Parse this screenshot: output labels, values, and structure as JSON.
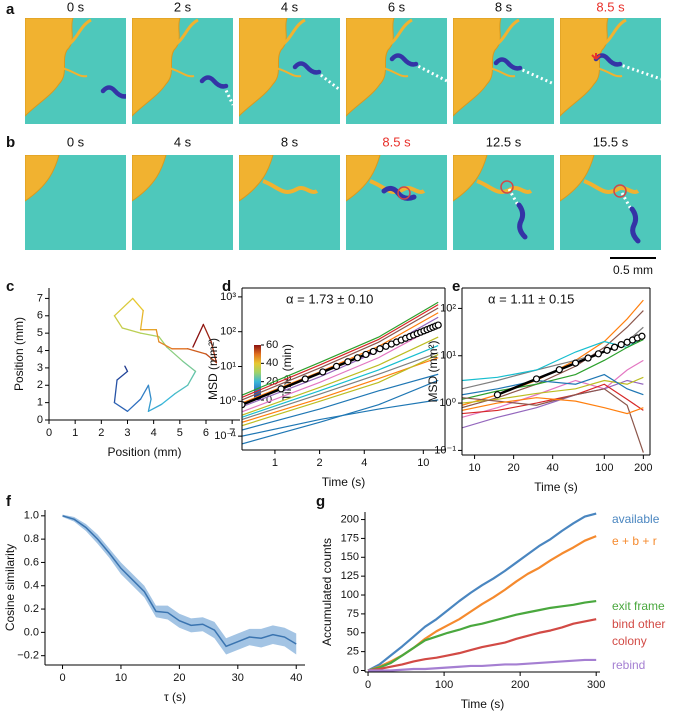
{
  "panel_labels": [
    "a",
    "b",
    "c",
    "d",
    "e",
    "f",
    "g"
  ],
  "image_rows": [
    {
      "frames": [
        {
          "time": "0 s"
        },
        {
          "time": "2 s"
        },
        {
          "time": "4 s"
        },
        {
          "time": "6 s"
        },
        {
          "time": "8 s"
        },
        {
          "time": "8.5 s",
          "color": "#e8302a"
        }
      ]
    },
    {
      "frames": [
        {
          "time": "0 s"
        },
        {
          "time": "4 s"
        },
        {
          "time": "8 s"
        },
        {
          "time": "8.5 s",
          "color": "#e8302a"
        },
        {
          "time": "12.5 s"
        },
        {
          "time": "15.5 s"
        }
      ]
    }
  ],
  "scale_bar": "0.5 mm",
  "chart_data": [
    {
      "type": "trajectory",
      "xlabel": "Position (mm)",
      "ylabel": "Position (mm)",
      "x": [
        2.9,
        3.0,
        2.6,
        2.5,
        3.0,
        3.5,
        3.8,
        3.9,
        3.8,
        4.3,
        4.8,
        5.3,
        5.6,
        5.1,
        4.5,
        4.2,
        3.5,
        2.8,
        2.5,
        3.2,
        3.6,
        3.5,
        4.1,
        4.2,
        4.7,
        5.3,
        6.0,
        6.4,
        6.2,
        5.9,
        5.5
      ],
      "y": [
        3.1,
        2.8,
        2.3,
        1.0,
        0.5,
        1.2,
        2.0,
        1.2,
        0.5,
        0.9,
        1.5,
        2.0,
        2.8,
        3.4,
        4.2,
        4.8,
        5.0,
        5.3,
        6.0,
        7.0,
        6.3,
        5.2,
        5.2,
        4.5,
        4.1,
        4.1,
        3.8,
        3.3,
        4.5,
        5.5,
        4.2
      ],
      "t": [
        0,
        2,
        4,
        6,
        8,
        10,
        12,
        14,
        16,
        18,
        20,
        22,
        24,
        26,
        28,
        30,
        32,
        34,
        36,
        38,
        40,
        42,
        44,
        46,
        48,
        50,
        52,
        54,
        56,
        58,
        60
      ],
      "xlim": [
        0,
        7.3
      ],
      "ylim": [
        0,
        7.6
      ],
      "xticks": [
        0,
        1,
        2,
        3,
        4,
        5,
        6,
        7
      ],
      "yticks": [
        0,
        1,
        2,
        3,
        4,
        5,
        6,
        7
      ],
      "colorbar": {
        "label": "Time (min)",
        "clim": [
          0,
          60
        ],
        "ticks": [
          0,
          20,
          40,
          60
        ],
        "colormap": [
          "#1a2a80",
          "#2f6fc0",
          "#3ab8d8",
          "#9fd36a",
          "#e8c830",
          "#e07020",
          "#8a1010"
        ]
      }
    },
    {
      "type": "loglog",
      "annotation": "α = 1.73 ± 0.10",
      "xlabel": "Time (s)",
      "ylabel": "MSD (mm²)",
      "log_x": true,
      "log_y": true,
      "xlim": [
        0.6,
        14
      ],
      "ylim": [
        0.04,
        1800
      ],
      "xticks": [
        1,
        2,
        4,
        10
      ],
      "yticks": [
        {
          "value": 0.1,
          "label": "10⁻¹"
        },
        {
          "value": 1,
          "label": "10⁰"
        },
        {
          "value": 10,
          "label": "10¹"
        },
        {
          "value": 100,
          "label": "10²"
        },
        {
          "value": 1000,
          "label": "10³"
        }
      ],
      "x": [
        0.6,
        2,
        5,
        12.6
      ],
      "series": [
        {
          "color": "#2ca02c",
          "values": [
            1.5,
            13,
            70,
            700
          ]
        },
        {
          "color": "#d62728",
          "values": [
            1.3,
            11,
            60,
            600
          ]
        },
        {
          "color": "#8c564b",
          "values": [
            1.1,
            9,
            50,
            480
          ]
        },
        {
          "color": "#ff7f0e",
          "values": [
            0.9,
            7,
            38,
            350
          ]
        },
        {
          "color": "#9467bd",
          "values": [
            0.7,
            5,
            28,
            260
          ]
        },
        {
          "color": "#e377c2",
          "values": [
            0.5,
            3.5,
            18,
            150
          ]
        },
        {
          "color": "#bcbd22",
          "values": [
            0.4,
            2.5,
            11,
            70
          ]
        },
        {
          "color": "#17becf",
          "values": [
            0.35,
            2,
            8,
            40
          ]
        },
        {
          "color": "#7f7f7f",
          "values": [
            0.3,
            1.6,
            6,
            25
          ]
        },
        {
          "color": "#ff7f0e",
          "values": [
            0.25,
            1.2,
            4.5,
            18
          ]
        },
        {
          "color": "#bcbd22",
          "values": [
            0.2,
            1,
            3.5,
            22
          ]
        },
        {
          "color": "#1f77b4",
          "values": [
            0.15,
            0.6,
            2,
            6
          ]
        },
        {
          "color": "#1f77b4",
          "values": [
            0.06,
            0.25,
            0.8,
            4
          ]
        },
        {
          "color": "#1f77b4",
          "values": [
            0.1,
            0.3,
            0.6,
            1.1
          ]
        }
      ],
      "mean": {
        "x": [
          0.6,
          1.1,
          1.6,
          2.1,
          2.6,
          3.1,
          3.6,
          4.1,
          4.6,
          5.1,
          5.6,
          6.1,
          6.6,
          7.1,
          7.6,
          8.1,
          8.6,
          9.1,
          9.6,
          10.1,
          10.6,
          11.1,
          11.6,
          12.1,
          12.6
        ],
        "values": [
          0.8,
          2.28,
          4.37,
          6.99,
          10.1,
          13.7,
          17.8,
          22.2,
          27.1,
          32.4,
          38.1,
          44.2,
          50.7,
          57.5,
          64.7,
          72.2,
          80.1,
          88.3,
          96.9,
          105.8,
          115.0,
          124.5,
          134.4,
          144.7,
          155.1
        ]
      },
      "fit": {
        "x": [
          0.6,
          12.6
        ],
        "values": [
          0.8,
          155.1
        ]
      }
    },
    {
      "type": "loglog",
      "annotation": "α = 1.11 ± 0.15",
      "xlabel": "Time (s)",
      "ylabel": "MSD (mm²)",
      "log_x": true,
      "log_y": true,
      "xlim": [
        8,
        225
      ],
      "ylim": [
        0.08,
        270
      ],
      "xticks": [
        10,
        20,
        40,
        100,
        200
      ],
      "yticks": [
        {
          "value": 0.1,
          "label": "10⁻¹"
        },
        {
          "value": 1,
          "label": "10⁰"
        },
        {
          "value": 10,
          "label": "10¹"
        },
        {
          "value": 100,
          "label": "10²"
        }
      ],
      "x": [
        8,
        15,
        30,
        60,
        100,
        150,
        200
      ],
      "series": [
        {
          "color": "#ff7f0e",
          "values": [
            0.9,
            1.5,
            3,
            8,
            20,
            60,
            150
          ]
        },
        {
          "color": "#8c564b",
          "values": [
            0.8,
            1.3,
            2.5,
            6,
            15,
            40,
            90
          ]
        },
        {
          "color": "#7f7f7f",
          "values": [
            2,
            3,
            5,
            8,
            12,
            20,
            40
          ]
        },
        {
          "color": "#17becf",
          "values": [
            3,
            3.5,
            5,
            12,
            20,
            15,
            25
          ]
        },
        {
          "color": "#2ca02c",
          "values": [
            1.2,
            1.8,
            2.5,
            4,
            8,
            15,
            22
          ]
        },
        {
          "color": "#e377c2",
          "values": [
            0.5,
            0.8,
            1.5,
            3,
            2,
            5,
            8
          ]
        },
        {
          "color": "#9467bd",
          "values": [
            0.3,
            0.5,
            0.8,
            1.5,
            2,
            3,
            2.5
          ]
        },
        {
          "color": "#bcbd22",
          "values": [
            1,
            1.2,
            1.6,
            2,
            3,
            2.5,
            3.5
          ]
        },
        {
          "color": "#1f77b4",
          "values": [
            1.5,
            2,
            3,
            2.5,
            4,
            2,
            1.5
          ]
        },
        {
          "color": "#d62728",
          "values": [
            0.6,
            0.7,
            1,
            1.5,
            2.5,
            1.2,
            0.7
          ]
        },
        {
          "color": "#8c564b",
          "values": [
            1.3,
            1.1,
            0.9,
            1.5,
            2,
            0.9,
            0.09
          ]
        },
        {
          "color": "#ff7f0e",
          "values": [
            0.7,
            1,
            1.3,
            1.1,
            0.8,
            0.6,
            0.8
          ]
        }
      ],
      "mean": {
        "x": [
          15,
          30,
          45,
          60,
          75,
          90,
          105,
          120,
          135,
          150,
          165,
          180,
          195
        ],
        "values": [
          1.5,
          3.24,
          5.08,
          6.99,
          8.95,
          11.0,
          13.0,
          15.1,
          17.2,
          19.3,
          21.5,
          23.7,
          25.8
        ]
      },
      "fit": {
        "x": [
          15,
          195
        ],
        "values": [
          1.5,
          25.8
        ]
      }
    },
    {
      "type": "line_band",
      "xlabel": "τ (s)",
      "ylabel": "Cosine similarity",
      "color": "#3a74b0",
      "band_color": "#a3c4e4",
      "xlim": [
        -3,
        41.5
      ],
      "ylim": [
        -0.28,
        1.05
      ],
      "xticks": [
        0,
        10,
        20,
        30,
        40
      ],
      "yticks": [
        {
          "value": -0.2,
          "label": "−0.2"
        },
        {
          "value": 0,
          "label": "0.0"
        },
        0.2,
        0.4,
        0.6,
        0.8,
        {
          "value": 1,
          "label": "1.0"
        }
      ],
      "x": [
        0,
        2,
        4,
        6,
        8,
        10,
        12,
        14,
        16,
        18,
        20,
        22,
        24,
        26,
        28,
        30,
        32,
        34,
        36,
        38,
        40
      ],
      "values": [
        1.0,
        0.97,
        0.9,
        0.8,
        0.68,
        0.55,
        0.45,
        0.35,
        0.18,
        0.17,
        0.1,
        0.06,
        0.07,
        0.02,
        -0.12,
        -0.08,
        -0.04,
        -0.05,
        -0.02,
        -0.04,
        -0.1
      ],
      "errors": [
        0.01,
        0.02,
        0.03,
        0.04,
        0.04,
        0.05,
        0.05,
        0.05,
        0.05,
        0.06,
        0.06,
        0.06,
        0.06,
        0.07,
        0.07,
        0.07,
        0.07,
        0.08,
        0.08,
        0.08,
        0.09
      ]
    },
    {
      "type": "step",
      "xlabel": "Time (s)",
      "ylabel": "Accumulated counts",
      "legend": "right-end",
      "xlim": [
        -4,
        305
      ],
      "ylim": [
        -2,
        210
      ],
      "xticks": [
        0,
        100,
        200,
        300
      ],
      "yticks": [
        0,
        25,
        50,
        75,
        100,
        125,
        150,
        175,
        200
      ],
      "x": [
        0,
        15,
        30,
        45,
        60,
        75,
        90,
        105,
        120,
        135,
        150,
        165,
        180,
        195,
        210,
        225,
        240,
        255,
        270,
        285,
        300
      ],
      "series": [
        {
          "name": "available",
          "color": "#4a86c0",
          "values": [
            0,
            8,
            20,
            32,
            45,
            58,
            68,
            80,
            92,
            103,
            113,
            122,
            132,
            143,
            154,
            165,
            174,
            185,
            195,
            204,
            208
          ]
        },
        {
          "name": "e + b + r",
          "color": "#f58a2e",
          "values": [
            0,
            5,
            12,
            20,
            30,
            42,
            52,
            60,
            68,
            78,
            88,
            97,
            107,
            118,
            128,
            136,
            146,
            155,
            163,
            172,
            178
          ]
        },
        {
          "name": "exit frame",
          "color": "#4aa83e",
          "values": [
            0,
            4,
            10,
            20,
            30,
            40,
            45,
            50,
            54,
            59,
            62,
            66,
            70,
            74,
            77,
            80,
            83,
            85,
            87,
            90,
            92
          ]
        },
        {
          "name": "bind other colony",
          "color": "#d24a45",
          "values": [
            0,
            2,
            5,
            8,
            12,
            15,
            17,
            20,
            23,
            27,
            31,
            34,
            37,
            42,
            46,
            50,
            53,
            57,
            62,
            65,
            68
          ]
        },
        {
          "name": "rebind",
          "color": "#a57fd2",
          "values": [
            0,
            0,
            0,
            1,
            2,
            2,
            3,
            4,
            5,
            6,
            6,
            7,
            8,
            8,
            9,
            10,
            11,
            12,
            13,
            14,
            14
          ]
        }
      ]
    }
  ]
}
